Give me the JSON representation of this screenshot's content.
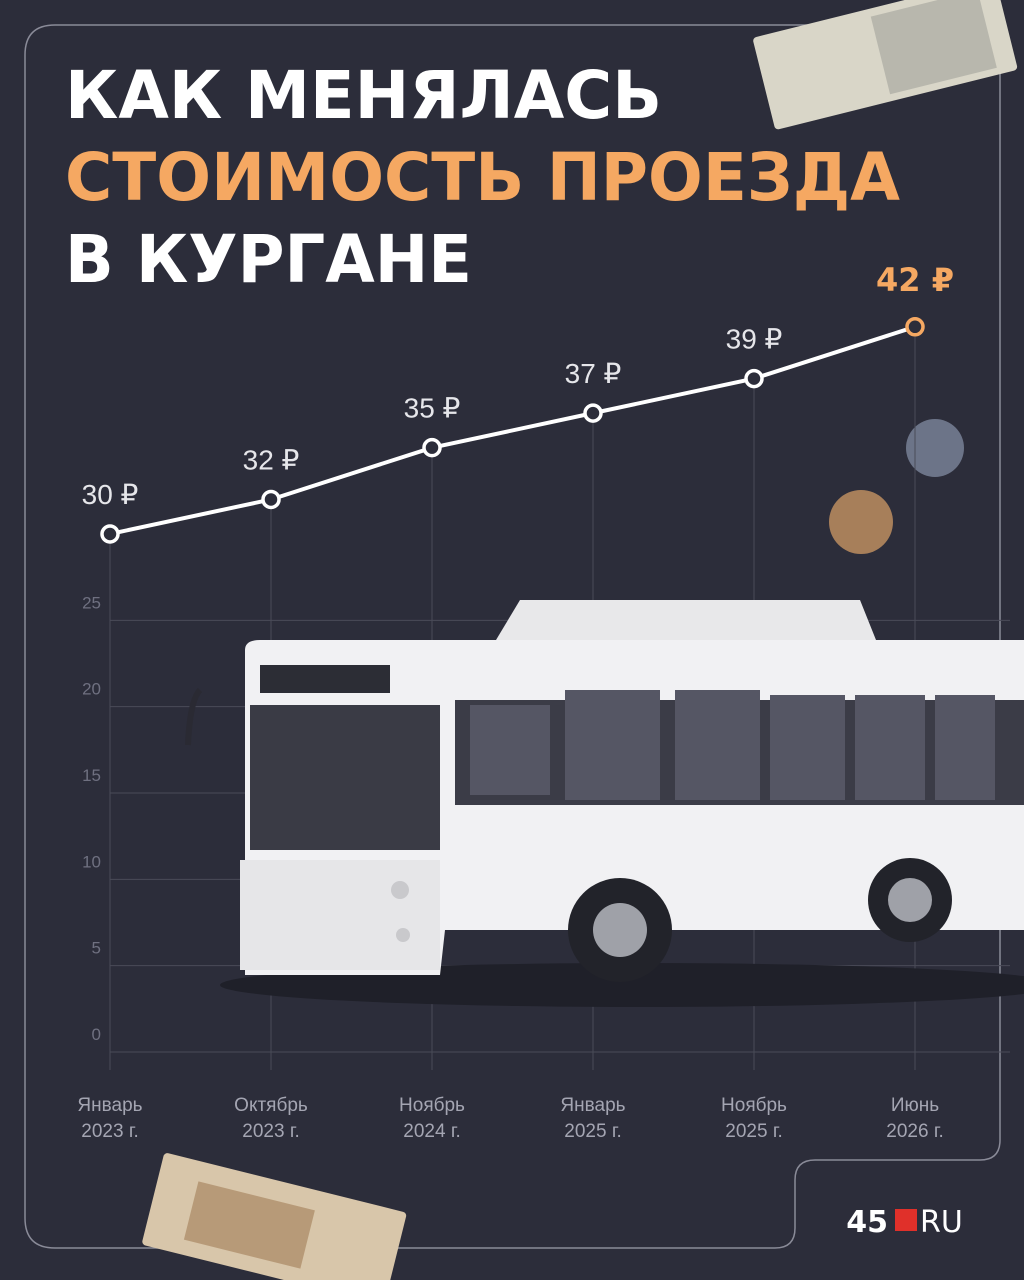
{
  "chart_data": {
    "type": "line",
    "title_lines": [
      "КАК МЕНЯЛАСЬ",
      "СТОИМОСТЬ ПРОЕЗДА",
      "В КУРГАНЕ"
    ],
    "categories": [
      [
        "Январь",
        "2023 г."
      ],
      [
        "Октябрь",
        "2023 г."
      ],
      [
        "Ноябрь",
        "2024 г."
      ],
      [
        "Январь",
        "2025 г."
      ],
      [
        "Ноябрь",
        "2025 г."
      ],
      [
        "Июнь",
        "2026 г."
      ]
    ],
    "values": [
      30,
      32,
      35,
      37,
      39,
      42
    ],
    "value_labels": [
      "30 ₽",
      "32 ₽",
      "35 ₽",
      "37 ₽",
      "39 ₽",
      "42 ₽"
    ],
    "color": "#ffffff",
    "highlight_color": "#f5a862",
    "ylim": [
      0,
      45
    ],
    "yticks": [
      0,
      5,
      10,
      15,
      20,
      25
    ],
    "grid": true,
    "logo": [
      "45",
      "RU"
    ]
  }
}
